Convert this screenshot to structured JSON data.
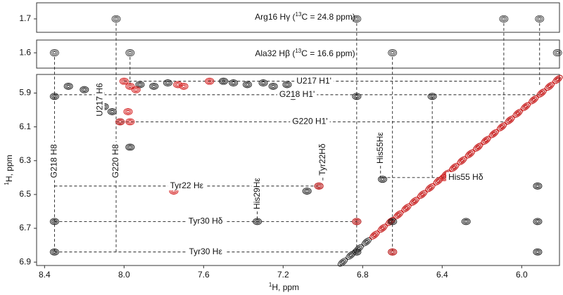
{
  "chart_data": {
    "type": "nmr",
    "xlabel": [
      "1",
      "H, ppm"
    ],
    "ylabel": [
      "1",
      "H, ppm"
    ],
    "xlim": [
      8.44,
      5.81
    ],
    "xticks": [
      8.4,
      {
        "value": 8,
        "label": "8.0"
      },
      7.6,
      7.2,
      6.8,
      6.4,
      {
        "value": 6,
        "label": "6.0"
      }
    ],
    "ylim": [
      5.79,
      6.92
    ],
    "yticks": [
      5.9,
      6.1,
      6.3,
      6.5,
      6.7,
      6.9
    ],
    "strips": [
      {
        "label": [
          "Arg16 Hγ (",
          "13",
          "C = 24.8 ppm)"
        ],
        "ylim": [
          1.64,
          1.75
        ],
        "yticks": [
          1.7
        ],
        "peaks": {
          "x": [
            8.04,
            6.83,
            6.09,
            5.91
          ],
          "y": [
            1.7,
            1.7,
            1.7,
            1.7
          ]
        }
      },
      {
        "label": [
          "Ala32 Hβ (",
          "13",
          "C = 16.6 ppm)"
        ],
        "ylim": [
          1.55,
          1.66
        ],
        "yticks": [
          1.6
        ],
        "peaks": {
          "x": [
            8.35,
            7.97,
            6.65,
            5.82
          ],
          "y": [
            1.6,
            1.6,
            1.6,
            1.6
          ]
        }
      }
    ],
    "peaks": [
      {
        "color": "#222222",
        "x": [
          8.35,
          8.35,
          8.35,
          8.1,
          8.06,
          8.02,
          7.97,
          8.28,
          8.2,
          8.12,
          7.92,
          7.85,
          7.78,
          7.5,
          7.45,
          7.38,
          7.3,
          7.25,
          7.18,
          7.15,
          6.83,
          6.45,
          7.08,
          7.02,
          7.33,
          6.7,
          6.83,
          6.65,
          6.65,
          6.83,
          5.92,
          5.92,
          5.92,
          6.28
        ],
        "y": [
          5.92,
          6.66,
          6.84,
          5.98,
          6.01,
          6.07,
          6.22,
          5.86,
          5.88,
          5.9,
          5.85,
          5.86,
          5.84,
          5.83,
          5.84,
          5.85,
          5.84,
          5.86,
          5.85,
          5.92,
          5.92,
          5.92,
          6.48,
          6.45,
          6.66,
          6.41,
          6.66,
          6.66,
          6.84,
          6.84,
          6.45,
          6.66,
          6.84,
          6.66
        ]
      },
      {
        "color": "#d42020",
        "x": [
          8.0,
          7.97,
          7.94,
          8.02,
          7.98,
          7.97,
          7.73,
          7.7,
          7.57,
          7.75,
          7.02,
          6.83,
          6.65,
          6.39
        ],
        "y": [
          5.83,
          5.86,
          5.88,
          6.07,
          6.01,
          6.07,
          5.85,
          5.86,
          5.83,
          6.48,
          6.45,
          6.66,
          6.84,
          6.4
        ]
      }
    ],
    "diagonal": [
      {
        "color": "#222222",
        "x": [
          6.9,
          6.86,
          6.82,
          6.78,
          6.74,
          6.7,
          6.66,
          6.62,
          6.58,
          6.54,
          6.5,
          6.46,
          6.42,
          6.38,
          6.34,
          6.3,
          6.26,
          6.22,
          6.18,
          6.14,
          6.1,
          6.06,
          6.02,
          5.98,
          5.94,
          5.9,
          5.86,
          5.82
        ],
        "y": [
          6.9,
          6.86,
          6.82,
          6.78,
          6.74,
          6.7,
          6.66,
          6.62,
          6.58,
          6.54,
          6.5,
          6.46,
          6.42,
          6.38,
          6.34,
          6.3,
          6.26,
          6.22,
          6.18,
          6.14,
          6.1,
          6.06,
          6.02,
          5.98,
          5.94,
          5.9,
          5.86,
          5.82
        ]
      },
      {
        "color": "#e01b1b",
        "x": [
          6.74,
          6.7,
          6.66,
          6.62,
          6.58,
          6.54,
          6.5,
          6.46,
          6.42,
          6.38,
          6.34,
          6.3,
          6.26,
          6.22,
          6.18,
          6.14,
          6.1,
          6.06,
          6.02,
          5.98,
          5.94,
          5.9,
          5.86,
          5.82
        ],
        "y": [
          6.74,
          6.7,
          6.66,
          6.62,
          6.58,
          6.54,
          6.5,
          6.46,
          6.42,
          6.38,
          6.34,
          6.3,
          6.26,
          6.22,
          6.18,
          6.14,
          6.1,
          6.06,
          6.02,
          5.98,
          5.94,
          5.9,
          5.86,
          5.82
        ]
      }
    ],
    "guides_h": [
      {
        "label": "U217 H1'",
        "y": 5.83,
        "x": [
          8.0,
          6.09
        ]
      },
      {
        "label": "G218 H1'",
        "y": 5.91,
        "x": [
          8.35,
          5.91
        ]
      },
      {
        "label": "G220 H1'",
        "y": 6.07,
        "x": [
          8.04,
          6.09
        ]
      },
      {
        "label": "Tyr22 Hε",
        "y": 6.45,
        "x": [
          8.35,
          7.02
        ]
      },
      {
        "label": "His55 Hδ",
        "y": 6.4,
        "x": [
          6.7,
          6.39
        ],
        "anchor": "end"
      },
      {
        "label": "Tyr30 Hδ",
        "y": 6.66,
        "x": [
          8.35,
          6.83
        ]
      },
      {
        "label": "Tyr30 Hε",
        "y": 6.84,
        "x": [
          8.35,
          6.83
        ]
      }
    ],
    "guides_v": [
      {
        "label": "G218 H8",
        "x": 8.35,
        "y": [
          null,
          6.84
        ]
      },
      {
        "label": "G220 H8",
        "x": 8.04,
        "y": [
          null,
          6.84
        ]
      },
      {
        "label": "U217 H6",
        "x": 8.12,
        "y": [
          6.05,
          6.05
        ]
      },
      {
        "label": "Tyr22Hδ",
        "x": 7.0,
        "y": [
          6.4,
          6.42
        ]
      },
      {
        "label": "His29Hε",
        "x": 7.33,
        "y": [
          6.6,
          6.66
        ]
      },
      {
        "label": "His55Hε",
        "x": 6.71,
        "y": [
          6.33,
          6.41
        ]
      },
      {
        "x": 7.97,
        "y": [
          null,
          5.87
        ]
      },
      {
        "x": 6.83,
        "y": [
          null,
          6.84
        ]
      },
      {
        "x": 6.65,
        "y": [
          null,
          6.84
        ]
      },
      {
        "x": 6.45,
        "y": [
          5.92,
          6.4
        ]
      },
      {
        "x": 6.09,
        "y": [
          null,
          6.07
        ]
      },
      {
        "x": 5.91,
        "y": [
          null,
          5.86
        ]
      }
    ]
  }
}
